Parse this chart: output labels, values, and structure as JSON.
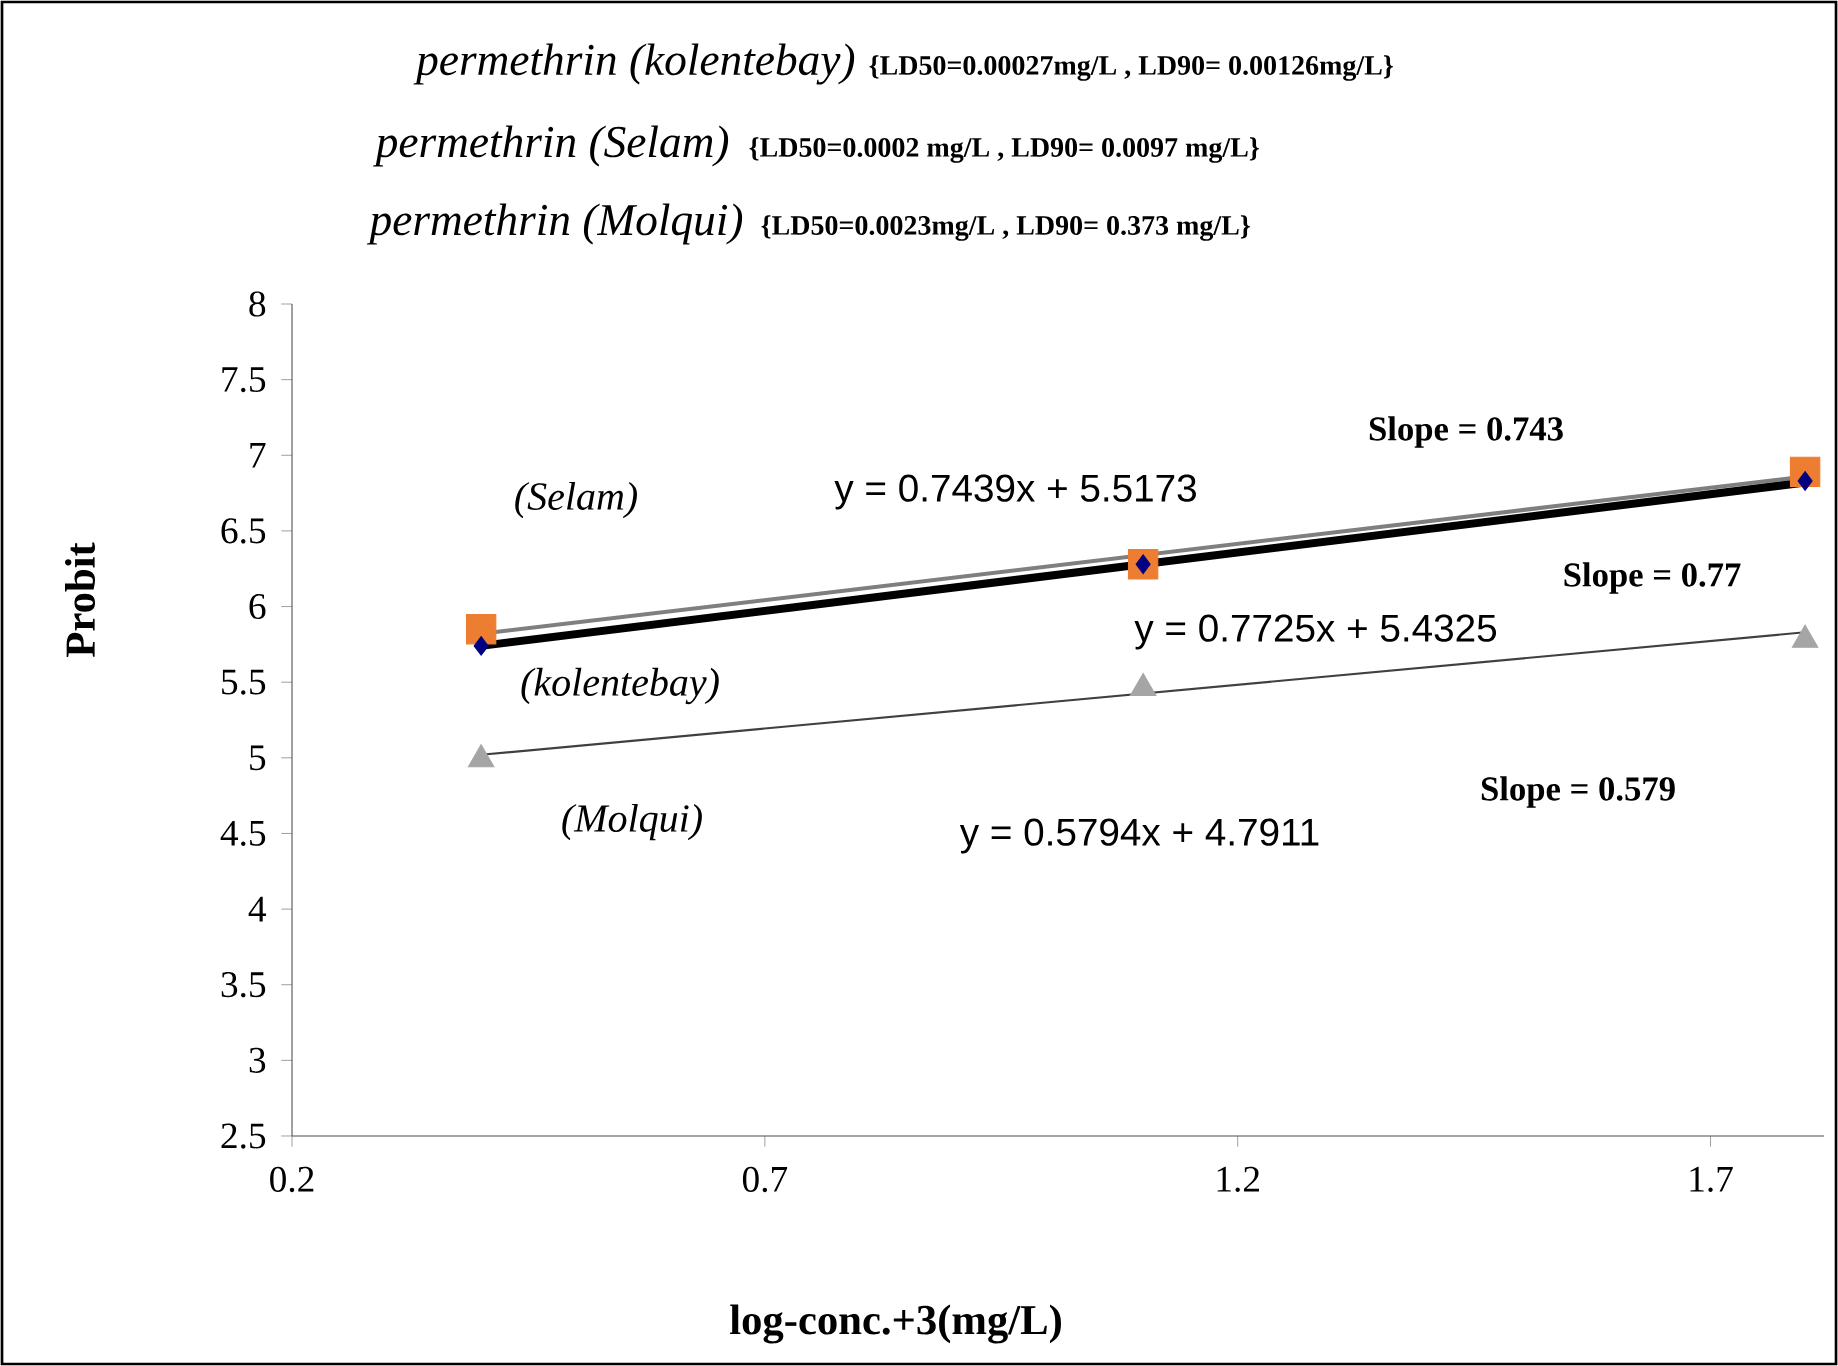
{
  "chart_data": {
    "type": "scatter",
    "xlabel": "log-conc.+3(mg/L)",
    "ylabel": "Probit",
    "xlim": [
      0.2,
      1.82
    ],
    "ylim": [
      2.5,
      8
    ],
    "xticks": [
      0.2,
      0.7,
      1.2,
      1.7
    ],
    "yticks": [
      2.5,
      3,
      3.5,
      4,
      4.5,
      5,
      5.5,
      6,
      6.5,
      7,
      7.5,
      8
    ],
    "grid": false,
    "series": [
      {
        "marker": "square",
        "color": "#ed7d31",
        "x": [
          0.4,
          1.1,
          1.8
        ],
        "values": [
          5.85,
          6.28,
          6.89
        ]
      },
      {
        "marker": "diamond",
        "color": "#000080",
        "x": [
          0.4,
          1.1,
          1.8
        ],
        "values": [
          5.74,
          6.28,
          6.83
        ]
      },
      {
        "marker": "triangle",
        "color": "#a5a5a5",
        "x": [
          0.4,
          1.1,
          1.8
        ],
        "values": [
          4.99,
          5.46,
          5.78
        ]
      },
      {
        "type": "line",
        "color": "#7f7f7f",
        "x": [
          0.4,
          1.8
        ],
        "values": [
          5.82,
          6.86
        ]
      },
      {
        "type": "line",
        "color": "#000000",
        "x": [
          0.4,
          1.8
        ],
        "values": [
          5.74,
          6.82
        ]
      },
      {
        "type": "line",
        "color": "#404040",
        "x": [
          0.4,
          1.8
        ],
        "values": [
          5.02,
          5.83
        ]
      }
    ],
    "annotations": [
      "permethrin (kolentebay)",
      "{LD50=0.00027mg/L , LD90= 0.00126mg/L}",
      "permethrin (Selam)",
      "{LD50=0.0002 mg/L , LD90= 0.0097 mg/L}",
      "permethrin (Molqui)",
      "{LD50=0.0023mg/L , LD90= 0.373 mg/L}",
      "(Selam)",
      "(kolentebay)",
      "(Molqui)",
      "y = 0.7439x + 5.5173",
      "y = 0.7725x + 5.4325",
      "y = 0.5794x + 4.7911",
      "Slope = 0.743",
      "Slope = 0.77",
      "Slope = 0.579"
    ]
  }
}
